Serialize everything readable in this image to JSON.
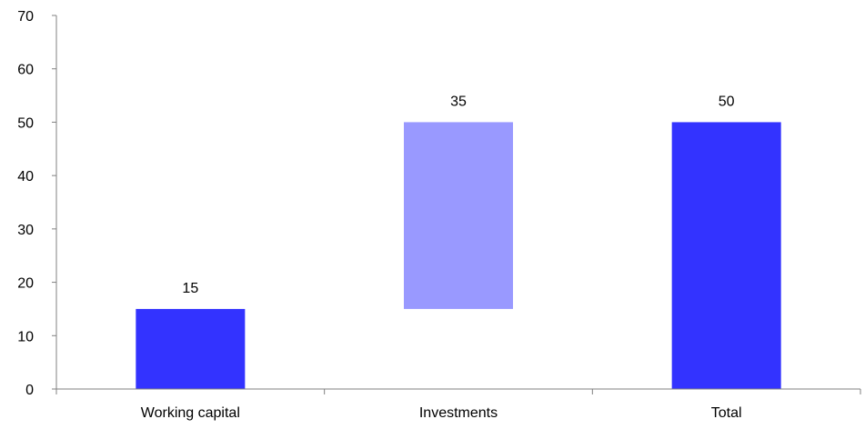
{
  "chart_data": {
    "type": "bar",
    "subtype": "waterfall",
    "title": "",
    "xlabel": "",
    "ylabel": "",
    "categories": [
      "Working capital",
      "Investments",
      "Total"
    ],
    "values": [
      15,
      35,
      50
    ],
    "bases": [
      0,
      15,
      0
    ],
    "data_labels": [
      "15",
      "35",
      "50"
    ],
    "ylim": [
      0,
      70
    ],
    "yticks": [
      0,
      10,
      20,
      30,
      40,
      50,
      60,
      70
    ],
    "ytick_labels": [
      "0",
      "10",
      "20",
      "30",
      "40",
      "50",
      "60",
      "70"
    ],
    "bar_colors": [
      "#3333ff",
      "#9999ff",
      "#3333ff"
    ],
    "grid": false,
    "legend": "none"
  }
}
